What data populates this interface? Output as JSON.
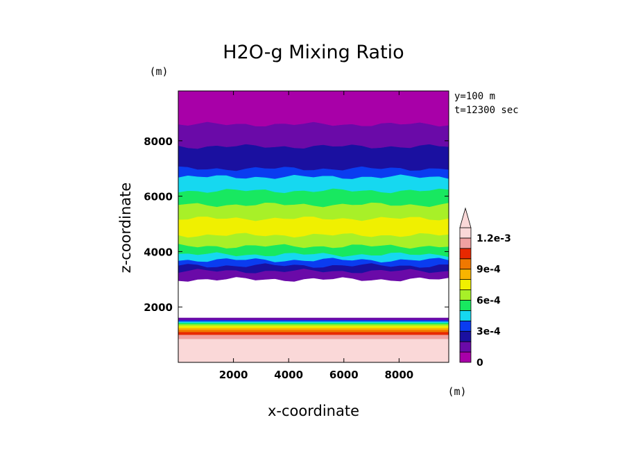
{
  "chart_data": {
    "type": "heatmap",
    "title": "H2O-g Mixing Ratio",
    "xlabel": "x-coordinate",
    "ylabel": "z-coordinate",
    "x_unit": "(m)",
    "y_unit": "(m)",
    "annotations": [
      "y=100 m",
      "t=12300 sec"
    ],
    "xlim": [
      0,
      9800
    ],
    "ylim": [
      0,
      9800
    ],
    "x_ticks": [
      2000,
      4000,
      6000,
      8000
    ],
    "y_ticks": [
      2000,
      4000,
      6000,
      8000
    ],
    "colorbar": {
      "levels": [
        0,
        0.0001,
        0.0002,
        0.0003,
        0.0004,
        0.0005,
        0.0006,
        0.0007,
        0.0008,
        0.0009,
        0.001,
        0.0011,
        0.0012
      ],
      "colors": [
        "#a800a8",
        "#6a0aa8",
        "#1a10a0",
        "#0a3cf0",
        "#16d8f0",
        "#18e860",
        "#a8f028",
        "#f0f000",
        "#f8b400",
        "#f07800",
        "#e82800",
        "#f0a0a0",
        "#fad8d8"
      ],
      "tick_labels": [
        "0",
        "3e-4",
        "6e-4",
        "9e-4",
        "1.2e-3"
      ],
      "tick_values": [
        0,
        0.0003,
        0.0006,
        0.0009,
        0.0012
      ],
      "extend": "max"
    },
    "layers": [
      {
        "level_index": 12,
        "z_bottom": 0,
        "z_top": 850,
        "value": ">=1.2e-3"
      },
      {
        "level_index": 11,
        "z_bottom": 850,
        "z_top": 1000
      },
      {
        "level_index": 10,
        "z_bottom": 1000,
        "z_top": 1100
      },
      {
        "level_index": 9,
        "z_bottom": 1100,
        "z_top": 1180
      },
      {
        "level_index": 8,
        "z_bottom": 1180,
        "z_top": 1250
      },
      {
        "level_index": 7,
        "z_bottom": 1250,
        "z_top": 1320
      },
      {
        "level_index": 6,
        "z_bottom": 1320,
        "z_top": 1380
      },
      {
        "level_index": 5,
        "z_bottom": 1380,
        "z_top": 1430
      },
      {
        "level_index": 4,
        "z_bottom": 1430,
        "z_top": 1480
      },
      {
        "level_index": 3,
        "z_bottom": 1480,
        "z_top": 1530
      },
      {
        "level_index": 1,
        "z_bottom": 1530,
        "z_top": 1620
      },
      {
        "level_index": -1,
        "z_bottom": 1620,
        "z_top": 3000,
        "value": "dry (blank)"
      },
      {
        "level_index": 1,
        "z_bottom": 3000,
        "z_top": 3300
      },
      {
        "level_index": 2,
        "z_bottom": 3300,
        "z_top": 3500
      },
      {
        "level_index": 3,
        "z_bottom": 3500,
        "z_top": 3700
      },
      {
        "level_index": 4,
        "z_bottom": 3700,
        "z_top": 3900
      },
      {
        "level_index": 5,
        "z_bottom": 3900,
        "z_top": 4200
      },
      {
        "level_index": 6,
        "z_bottom": 4200,
        "z_top": 4600
      },
      {
        "level_index": 7,
        "z_bottom": 4600,
        "z_top": 5200
      },
      {
        "level_index": 6,
        "z_bottom": 5200,
        "z_top": 5700
      },
      {
        "level_index": 5,
        "z_bottom": 5700,
        "z_top": 6200
      },
      {
        "level_index": 4,
        "z_bottom": 6200,
        "z_top": 6700
      },
      {
        "level_index": 3,
        "z_bottom": 6700,
        "z_top": 7000
      },
      {
        "level_index": 2,
        "z_bottom": 7000,
        "z_top": 7800
      },
      {
        "level_index": 1,
        "z_bottom": 7800,
        "z_top": 8600
      },
      {
        "level_index": 0,
        "z_bottom": 8600,
        "z_top": 9800
      }
    ]
  }
}
